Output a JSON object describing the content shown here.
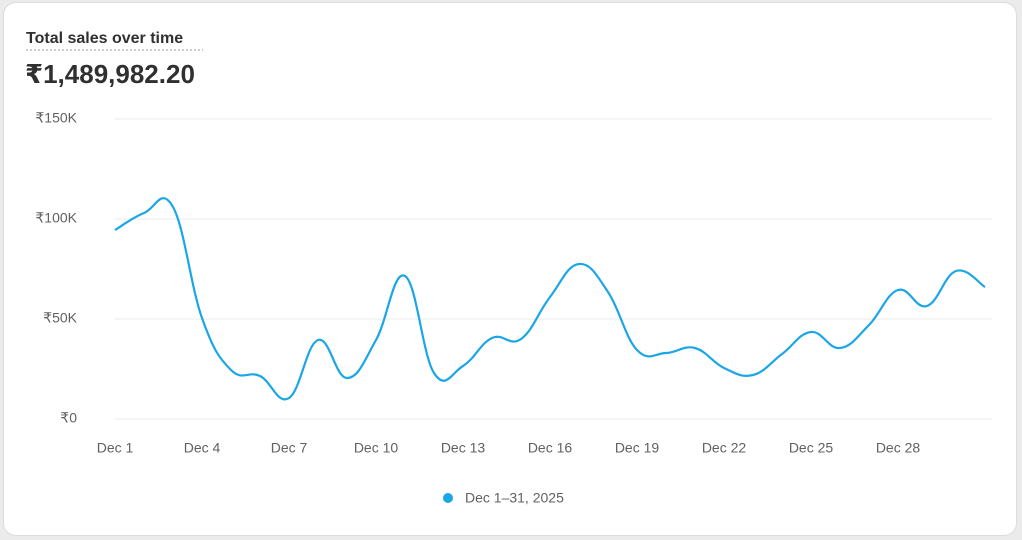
{
  "chart_data": {
    "type": "line",
    "title": "Total sales over time",
    "total": "₹1,489,982.20",
    "categories": [
      "Dec 1",
      null,
      null,
      "Dec 4",
      null,
      null,
      "Dec 7",
      null,
      null,
      "Dec 10",
      null,
      null,
      "Dec 13",
      null,
      null,
      "Dec 16",
      null,
      null,
      "Dec 19",
      null,
      null,
      "Dec 22",
      null,
      null,
      "Dec 25",
      null,
      null,
      "Dec 28",
      null,
      null,
      null
    ],
    "series": [
      {
        "name": "Dec 1–31, 2025",
        "color": "#1ba6e6",
        "values": [
          94500,
          103000,
          106000,
          50500,
          24500,
          21500,
          10500,
          39500,
          20500,
          39500,
          71500,
          23000,
          26500,
          40500,
          40000,
          61000,
          77500,
          63500,
          34500,
          33000,
          35500,
          25500,
          22000,
          32500,
          43500,
          35500,
          47000,
          64500,
          56500,
          74000,
          66000
        ]
      }
    ],
    "ylim": [
      0,
      150000
    ],
    "yticks": [
      {
        "value": 0,
        "label": "₹0"
      },
      {
        "value": 50000,
        "label": "₹50K"
      },
      {
        "value": 100000,
        "label": "₹100K"
      },
      {
        "value": 150000,
        "label": "₹150K"
      }
    ],
    "grid": true,
    "legend": "bottom"
  }
}
